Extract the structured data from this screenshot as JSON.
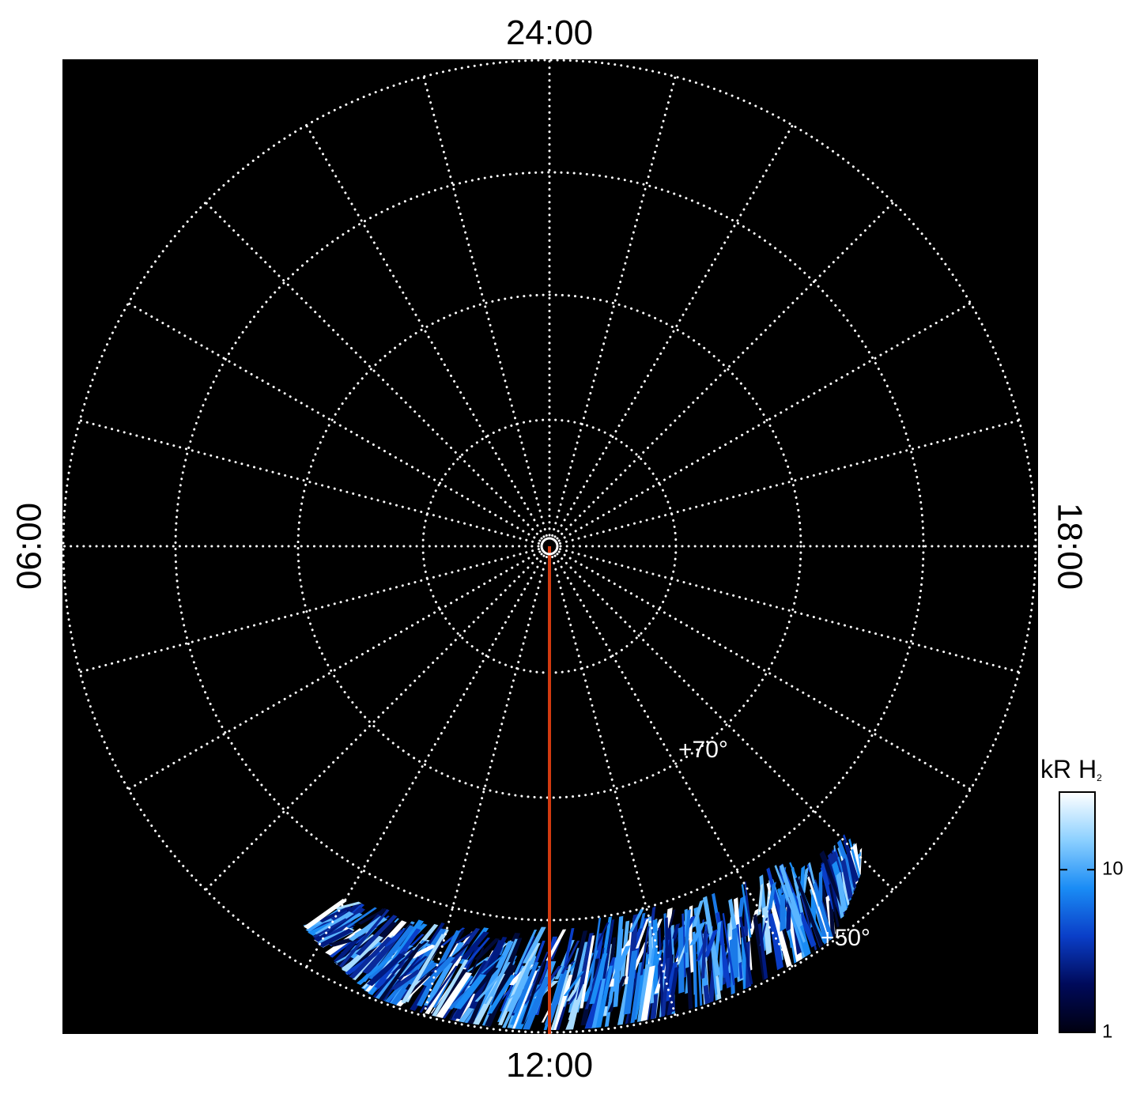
{
  "time_labels": {
    "top": "24:00",
    "bottom": "12:00",
    "left": "06:00",
    "right": "18:00"
  },
  "latitude_labels": [
    "+70°",
    "+50°"
  ],
  "colorbar": {
    "title": "kR H",
    "title_subscript": "2",
    "scale": "log",
    "lim": [
      1,
      30
    ],
    "ticks": [
      1,
      10
    ],
    "colors": [
      "#000010",
      "#000a5a",
      "#0a3ec8",
      "#1a8cf5",
      "#8cd0ff",
      "#ffffff"
    ]
  }
}
